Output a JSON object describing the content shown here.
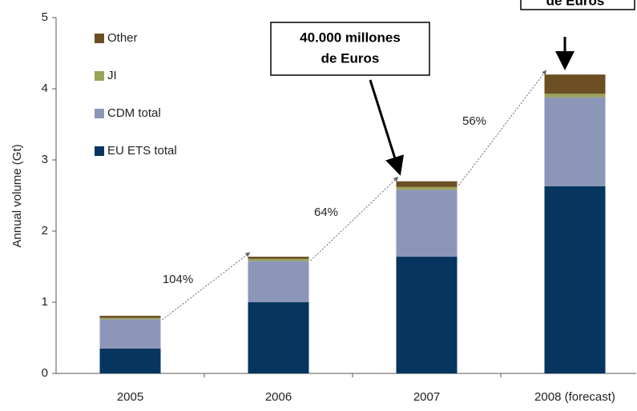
{
  "chart_data": {
    "type": "stacked_bar",
    "y_label": "Annual volume (Gt)",
    "categories": [
      "2005",
      "2006",
      "2007",
      "2008 (forecast)"
    ],
    "series": [
      {
        "name": "EU ETS total",
        "color": "#06365f",
        "values": [
          0.35,
          1.0,
          1.64,
          2.63
        ]
      },
      {
        "name": "CDM total",
        "color": "#8c96b9",
        "values": [
          0.41,
          0.58,
          0.94,
          1.25
        ]
      },
      {
        "name": "JI",
        "color": "#9aa35a",
        "values": [
          0.02,
          0.03,
          0.04,
          0.05
        ]
      },
      {
        "name": "Other",
        "color": "#6b4f22",
        "values": [
          0.03,
          0.03,
          0.08,
          0.27
        ]
      }
    ],
    "growth_labels": [
      "104%",
      "64%",
      "56%"
    ],
    "callouts": [
      {
        "lines": [
          "40.000 millones",
          "de Euros"
        ]
      },
      {
        "lines": [
          "de Euros"
        ]
      }
    ],
    "ylim": [
      0,
      5
    ],
    "yticks": [
      0,
      1,
      2,
      3,
      4,
      5
    ],
    "legend": "upper left"
  }
}
